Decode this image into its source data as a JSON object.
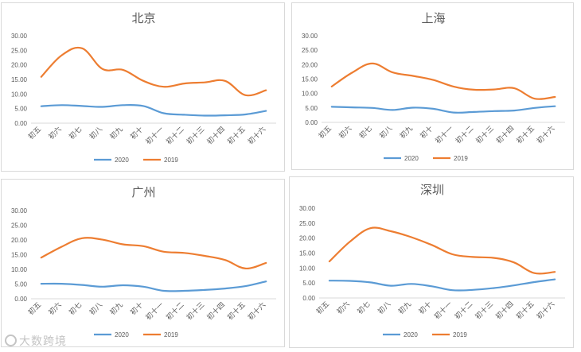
{
  "colors": {
    "2020": "#5b9bd5",
    "2019": "#ed7d31",
    "grid": "#d9d9d9",
    "text": "#595959"
  },
  "legend_labels": [
    "2020",
    "2019"
  ],
  "watermark": "大数跨境",
  "chart_data": [
    {
      "type": "line",
      "title": "北京",
      "categories": [
        "初五",
        "初六",
        "初七",
        "初八",
        "初九",
        "初十",
        "初十一",
        "初十二",
        "初十三",
        "初十四",
        "初十五",
        "初十六"
      ],
      "ylim": [
        0,
        30
      ],
      "yticks": [
        "0.00",
        "5.00",
        "10.00",
        "15.00",
        "20.00",
        "25.00",
        "30.00"
      ],
      "grid": false,
      "legend": "bottom",
      "series": [
        {
          "name": "2020",
          "values": [
            5.8,
            6.2,
            5.9,
            5.6,
            6.2,
            5.9,
            3.4,
            2.9,
            2.6,
            2.7,
            3.0,
            4.2
          ]
        },
        {
          "name": "2019",
          "values": [
            15.9,
            23.3,
            25.7,
            18.6,
            18.3,
            14.5,
            12.5,
            13.6,
            14.0,
            14.5,
            9.6,
            11.3
          ]
        }
      ]
    },
    {
      "type": "line",
      "title": "上海",
      "categories": [
        "初五",
        "初六",
        "初七",
        "初八",
        "初九",
        "初十",
        "初十一",
        "初十二",
        "初十三",
        "初十四",
        "初十五",
        "初十六"
      ],
      "ylim": [
        0,
        30
      ],
      "yticks": [
        "0.00",
        "5.00",
        "10.00",
        "15.00",
        "20.00",
        "25.00",
        "30.00"
      ],
      "grid": false,
      "legend": "bottom",
      "series": [
        {
          "name": "2020",
          "values": [
            5.4,
            5.2,
            5.0,
            4.3,
            5.1,
            4.7,
            3.4,
            3.6,
            3.9,
            4.1,
            5.0,
            5.6
          ]
        },
        {
          "name": "2019",
          "values": [
            12.4,
            17.2,
            20.4,
            17.3,
            16.1,
            14.7,
            12.4,
            11.3,
            11.4,
            11.8,
            8.2,
            8.8
          ]
        }
      ]
    },
    {
      "type": "line",
      "title": "广州",
      "categories": [
        "初五",
        "初六",
        "初七",
        "初八",
        "初九",
        "初十",
        "初十一",
        "初十二",
        "初十三",
        "初十四",
        "初十五",
        "初十六"
      ],
      "ylim": [
        0,
        30
      ],
      "yticks": [
        "0.00",
        "5.00",
        "10.00",
        "15.00",
        "20.00",
        "25.00",
        "30.00"
      ],
      "grid": false,
      "legend": "bottom",
      "series": [
        {
          "name": "2020",
          "values": [
            5.1,
            5.1,
            4.7,
            4.1,
            4.6,
            4.1,
            2.7,
            2.7,
            3.0,
            3.5,
            4.3,
            5.9
          ]
        },
        {
          "name": "2019",
          "values": [
            14.0,
            17.7,
            20.6,
            20.1,
            18.5,
            17.9,
            16.0,
            15.6,
            14.6,
            13.2,
            10.3,
            12.2
          ]
        }
      ]
    },
    {
      "type": "line",
      "title": "深圳",
      "categories": [
        "初五",
        "初六",
        "初七",
        "初八",
        "初九",
        "初十",
        "初十一",
        "初十二",
        "初十三",
        "初十四",
        "初十五",
        "初十六"
      ],
      "ylim": [
        0,
        30
      ],
      "yticks": [
        "0.00",
        "5.00",
        "10.00",
        "15.00",
        "20.00",
        "25.00",
        "30.00"
      ],
      "grid": false,
      "legend": "bottom",
      "series": [
        {
          "name": "2020",
          "values": [
            5.8,
            5.7,
            5.2,
            4.1,
            4.7,
            3.9,
            2.6,
            2.7,
            3.3,
            4.2,
            5.3,
            6.2
          ]
        },
        {
          "name": "2019",
          "values": [
            12.2,
            18.8,
            23.3,
            22.3,
            20.3,
            17.7,
            14.6,
            13.7,
            13.4,
            11.9,
            8.3,
            8.7
          ]
        }
      ]
    }
  ]
}
